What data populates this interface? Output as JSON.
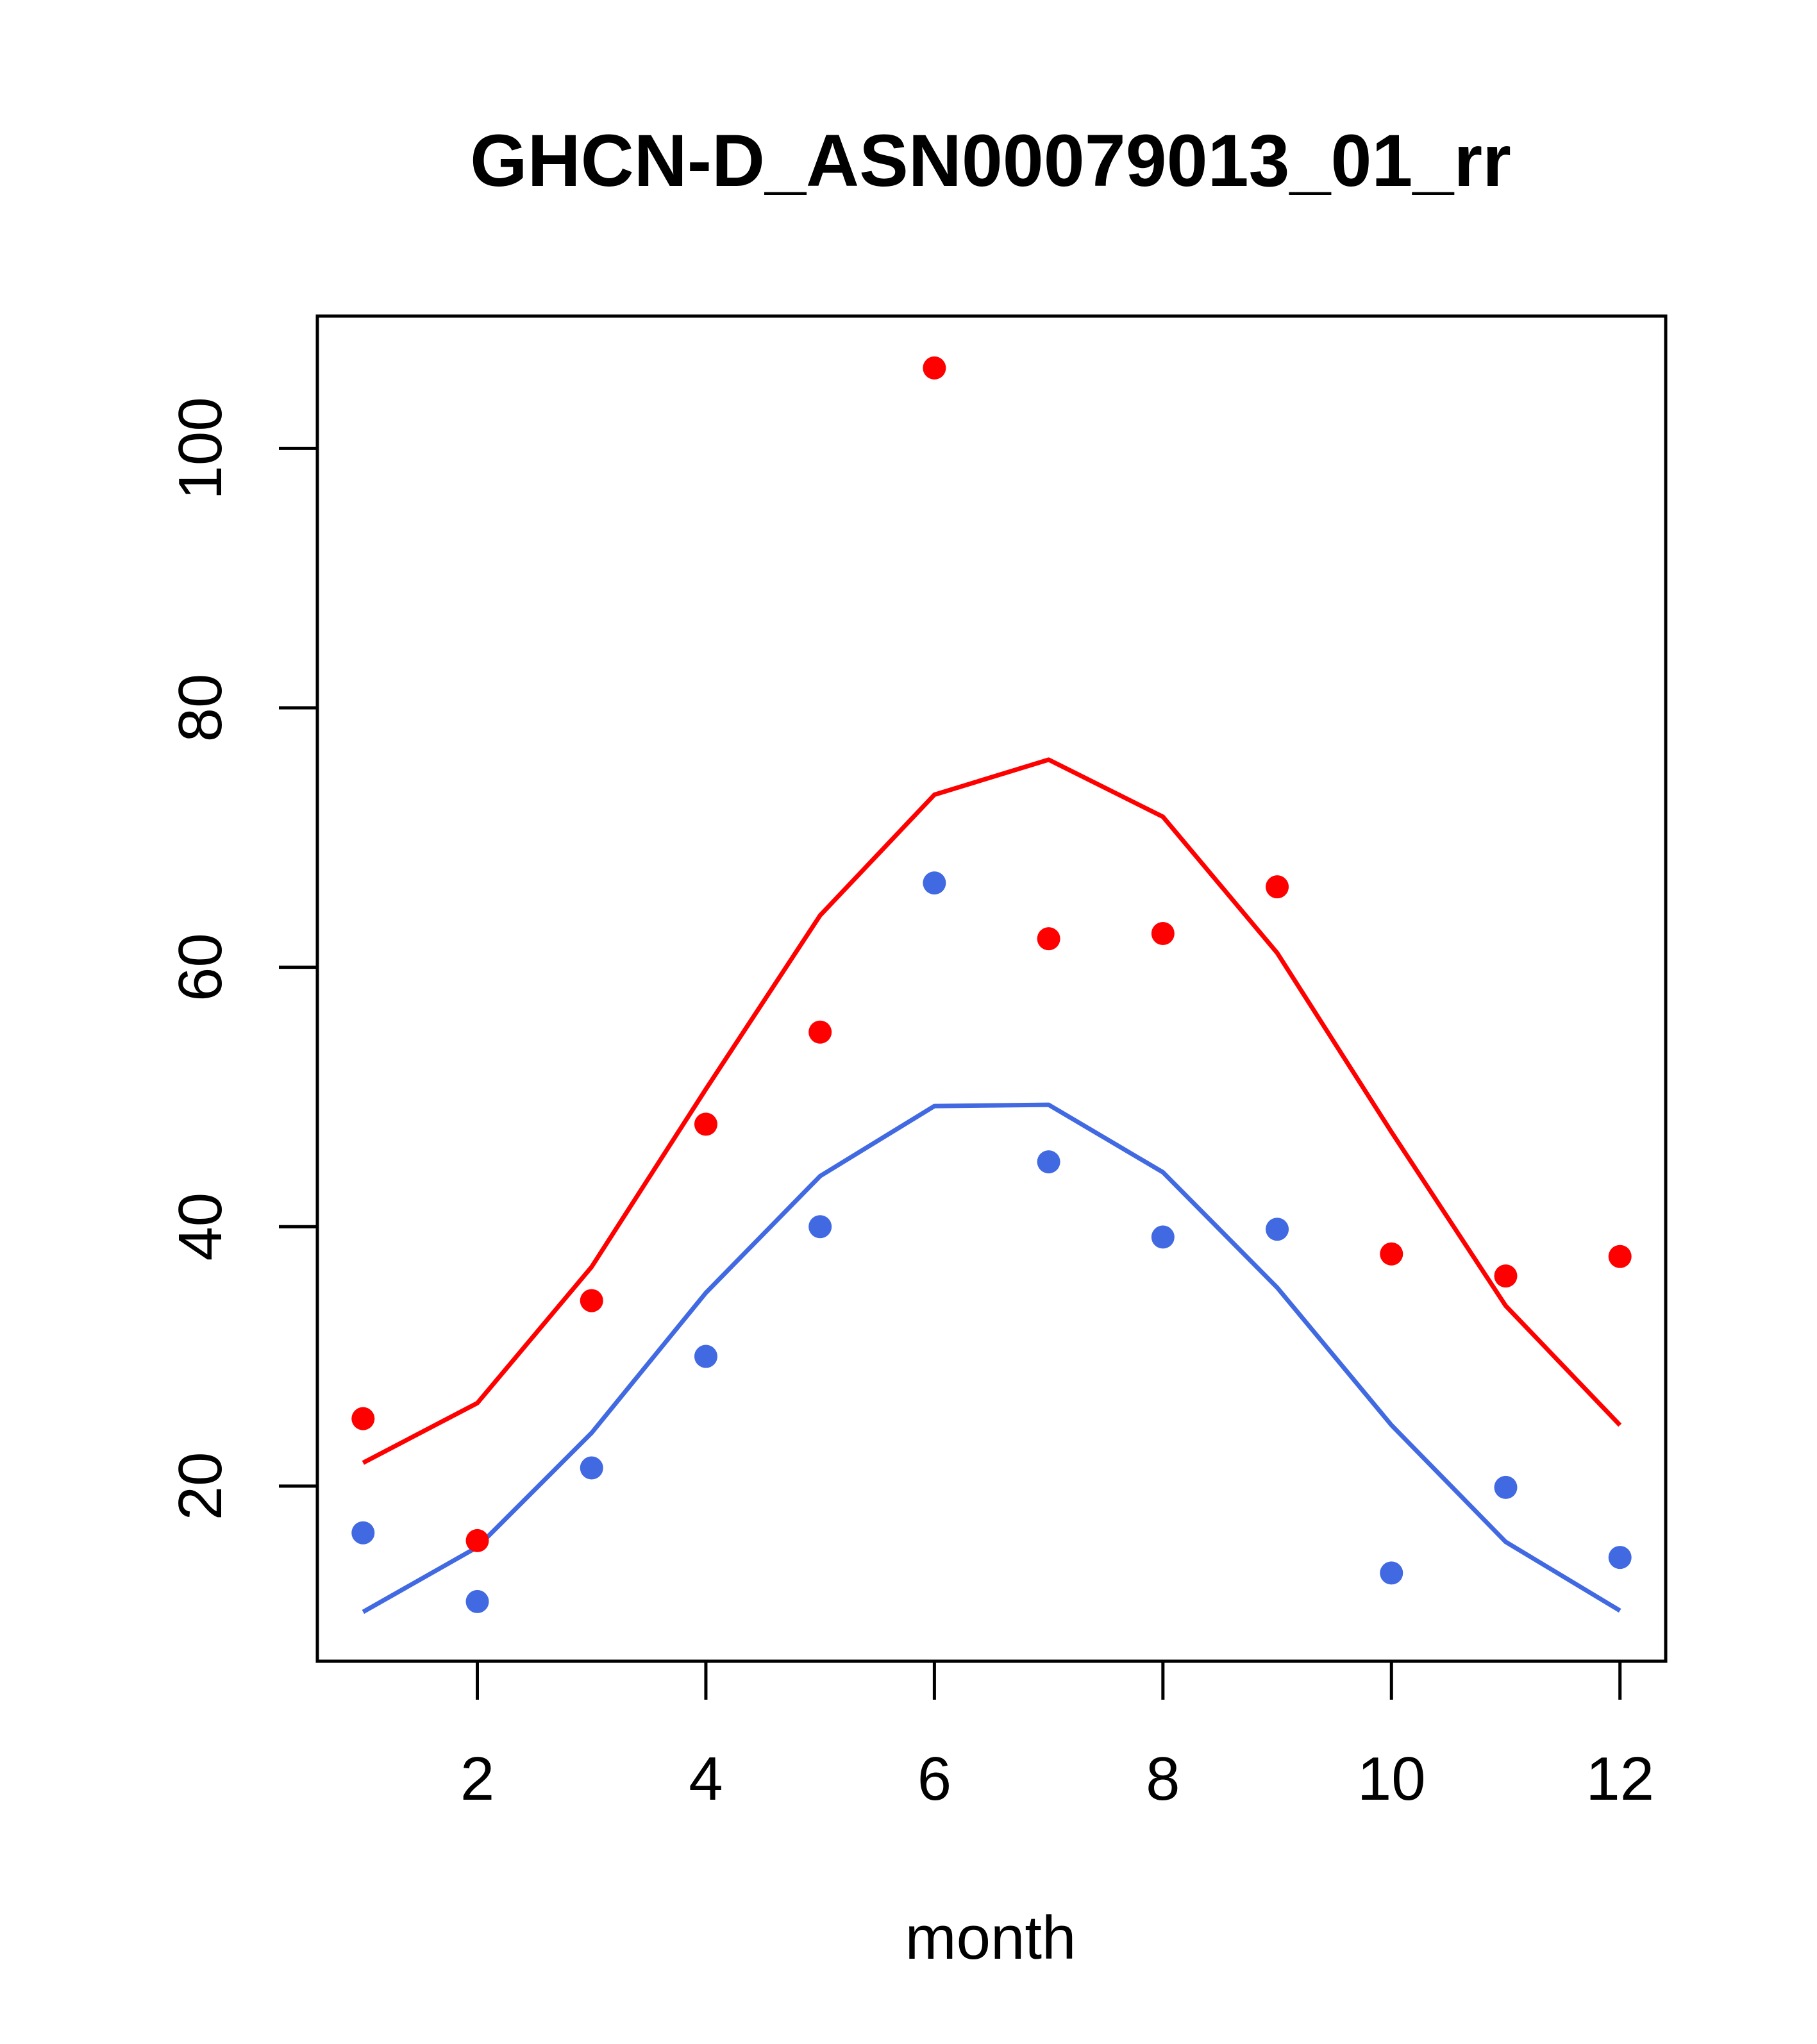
{
  "chart_data": {
    "type": "scatter",
    "title": "GHCN-D_ASN00079013_01_rr",
    "xlabel": "month",
    "ylabel": "",
    "xlim": [
      0.6,
      12.4
    ],
    "ylim": [
      6.5,
      110.2
    ],
    "x_ticks": [
      2,
      4,
      6,
      8,
      10,
      12
    ],
    "y_ticks": [
      20,
      40,
      60,
      80,
      100
    ],
    "grid": false,
    "legend": "none",
    "x": [
      1,
      2,
      3,
      4,
      5,
      6,
      7,
      8,
      9,
      10,
      11,
      12
    ],
    "series": [
      {
        "color": "#ff0000",
        "points": [
          25.2,
          15.8,
          34.3,
          47.9,
          55.0,
          106.2,
          62.2,
          62.6,
          66.2,
          37.9,
          36.2,
          37.7
        ],
        "line": [
          21.8,
          26.4,
          36.9,
          50.6,
          64.0,
          73.3,
          76.0,
          71.6,
          61.1,
          47.3,
          33.9,
          24.7
        ]
      },
      {
        "color": "#4169e1",
        "points": [
          16.4,
          11.1,
          21.4,
          30.0,
          40.0,
          66.5,
          45.0,
          39.2,
          39.8,
          13.3,
          19.9,
          14.5
        ],
        "line": [
          10.3,
          15.3,
          24.1,
          34.9,
          43.9,
          49.3,
          49.4,
          44.2,
          35.3,
          24.7,
          15.7,
          10.4
        ]
      }
    ]
  }
}
